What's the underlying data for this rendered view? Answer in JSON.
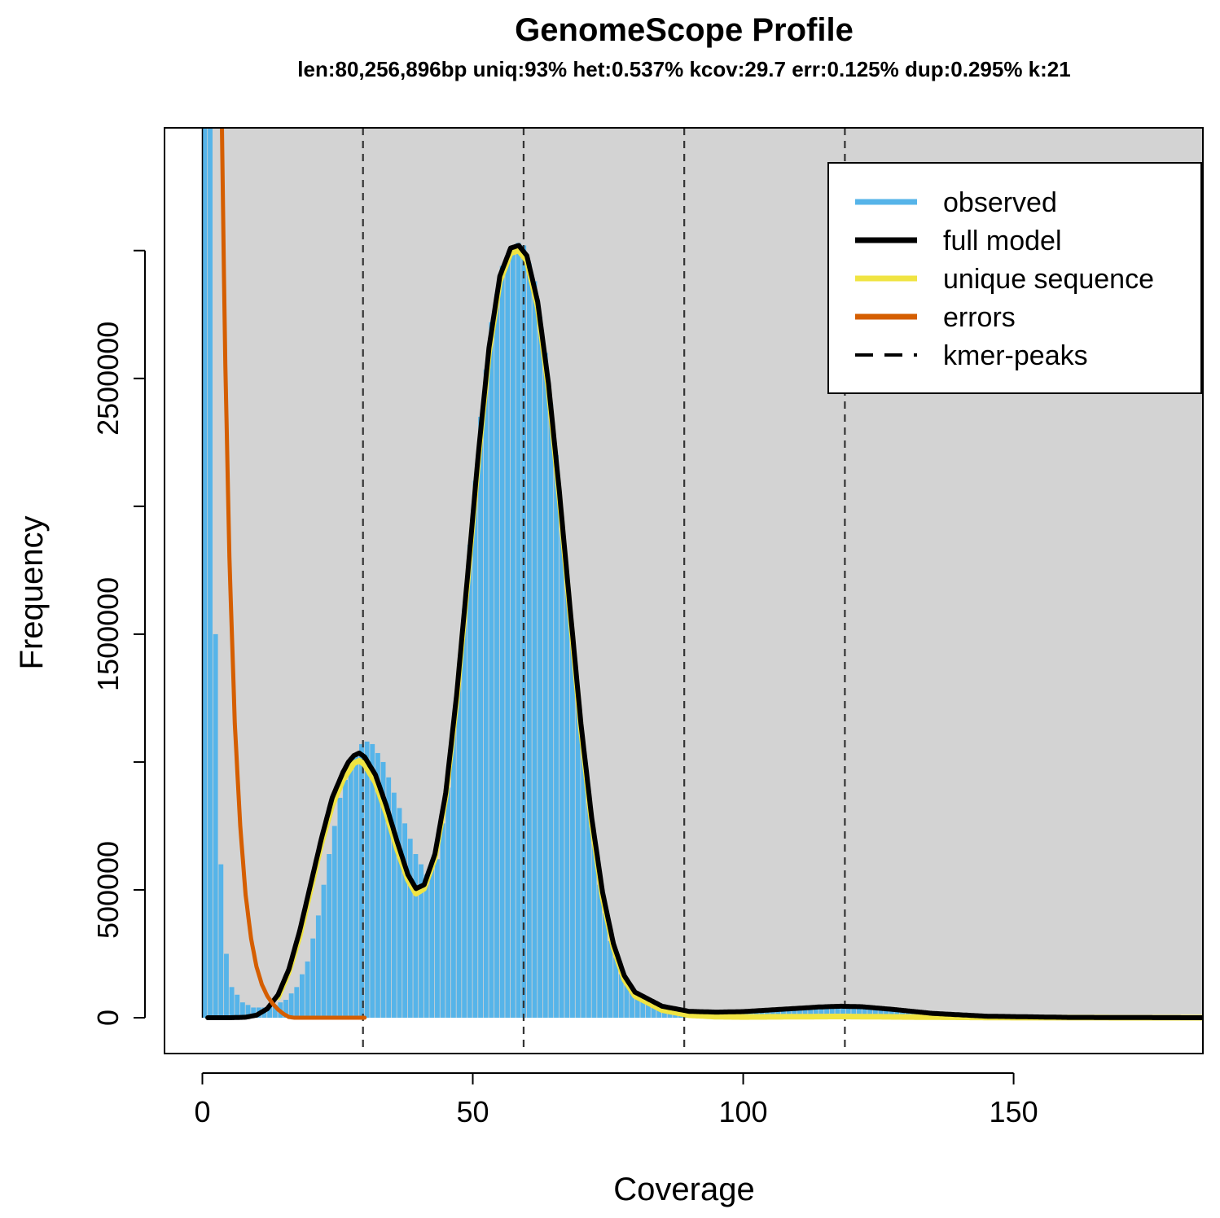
{
  "chart_data": {
    "type": "bar",
    "title": "GenomeScope Profile",
    "subtitle": "len:80,256,896bp uniq:93%  het:0.537% kcov:29.7 err:0.125%  dup:0.295%  k:21",
    "xlabel": "Coverage",
    "ylabel": "Frequency",
    "xlim": [
      -7,
      185
    ],
    "ylim": [
      -140000,
      3480000
    ],
    "x_ticks": [
      0,
      50,
      100,
      150
    ],
    "y_ticks": [
      0,
      500000,
      1500000,
      2500000
    ],
    "y_minor_ticks": [
      1000000,
      2000000,
      3000000
    ],
    "grid": false,
    "background": "#d3d3d3",
    "legend": {
      "placement": "top-right",
      "entries": [
        {
          "label": "observed",
          "color": "#56b4e9",
          "style": "solid"
        },
        {
          "label": "full model",
          "color": "#000000",
          "style": "solid"
        },
        {
          "label": "unique sequence",
          "color": "#f0e442",
          "style": "solid"
        },
        {
          "label": "errors",
          "color": "#d55e00",
          "style": "solid"
        },
        {
          "label": "kmer-peaks",
          "color": "#000000",
          "style": "dashed"
        }
      ]
    },
    "kmer_peaks": [
      29.7,
      59.4,
      89.1,
      118.8
    ],
    "observed_keypoints": [
      [
        1,
        9000000
      ],
      [
        2,
        5000000
      ],
      [
        3,
        1500000
      ],
      [
        4,
        600000
      ],
      [
        5,
        250000
      ],
      [
        6,
        120000
      ],
      [
        8,
        60000
      ],
      [
        10,
        40000
      ],
      [
        12,
        40000
      ],
      [
        14,
        50000
      ],
      [
        16,
        70000
      ],
      [
        18,
        120000
      ],
      [
        20,
        220000
      ],
      [
        22,
        400000
      ],
      [
        24,
        640000
      ],
      [
        26,
        860000
      ],
      [
        28,
        1000000
      ],
      [
        30,
        1070000
      ],
      [
        31,
        1080000
      ],
      [
        32,
        1070000
      ],
      [
        34,
        1000000
      ],
      [
        36,
        880000
      ],
      [
        38,
        760000
      ],
      [
        40,
        640000
      ],
      [
        42,
        560000
      ],
      [
        44,
        620000
      ],
      [
        46,
        900000
      ],
      [
        48,
        1350000
      ],
      [
        50,
        1850000
      ],
      [
        52,
        2350000
      ],
      [
        54,
        2720000
      ],
      [
        56,
        2940000
      ],
      [
        58,
        3020000
      ],
      [
        59,
        3030000
      ],
      [
        60,
        3020000
      ],
      [
        62,
        2880000
      ],
      [
        64,
        2600000
      ],
      [
        66,
        2200000
      ],
      [
        68,
        1720000
      ],
      [
        70,
        1250000
      ],
      [
        72,
        840000
      ],
      [
        74,
        520000
      ],
      [
        76,
        300000
      ],
      [
        78,
        170000
      ],
      [
        80,
        100000
      ],
      [
        84,
        50000
      ],
      [
        90,
        30000
      ],
      [
        100,
        25000
      ],
      [
        110,
        30000
      ],
      [
        118,
        40000
      ],
      [
        125,
        35000
      ],
      [
        135,
        15000
      ],
      [
        150,
        5000
      ],
      [
        185,
        2000
      ]
    ],
    "full_model_keypoints": [
      [
        1,
        0
      ],
      [
        5,
        0
      ],
      [
        8,
        2000
      ],
      [
        10,
        10000
      ],
      [
        12,
        35000
      ],
      [
        14,
        90000
      ],
      [
        16,
        190000
      ],
      [
        18,
        340000
      ],
      [
        20,
        520000
      ],
      [
        22,
        700000
      ],
      [
        24,
        860000
      ],
      [
        26,
        960000
      ],
      [
        27,
        1000000
      ],
      [
        28,
        1025000
      ],
      [
        29,
        1035000
      ],
      [
        30,
        1020000
      ],
      [
        32,
        950000
      ],
      [
        34,
        830000
      ],
      [
        36,
        690000
      ],
      [
        38,
        560000
      ],
      [
        39.5,
        505000
      ],
      [
        41,
        520000
      ],
      [
        43,
        640000
      ],
      [
        45,
        880000
      ],
      [
        47,
        1260000
      ],
      [
        49,
        1720000
      ],
      [
        51,
        2200000
      ],
      [
        53,
        2620000
      ],
      [
        55,
        2900000
      ],
      [
        57,
        3010000
      ],
      [
        58.5,
        3020000
      ],
      [
        60,
        2980000
      ],
      [
        62,
        2800000
      ],
      [
        64,
        2480000
      ],
      [
        66,
        2060000
      ],
      [
        68,
        1600000
      ],
      [
        70,
        1150000
      ],
      [
        72,
        780000
      ],
      [
        74,
        490000
      ],
      [
        76,
        290000
      ],
      [
        78,
        165000
      ],
      [
        80,
        100000
      ],
      [
        85,
        45000
      ],
      [
        90,
        25000
      ],
      [
        95,
        22000
      ],
      [
        100,
        24000
      ],
      [
        108,
        34000
      ],
      [
        114,
        42000
      ],
      [
        118,
        45000
      ],
      [
        122,
        43000
      ],
      [
        128,
        32000
      ],
      [
        135,
        17000
      ],
      [
        145,
        6000
      ],
      [
        160,
        1500
      ],
      [
        185,
        0
      ]
    ],
    "unique_sequence_keypoints": [
      [
        14,
        80000
      ],
      [
        16,
        180000
      ],
      [
        18,
        320000
      ],
      [
        20,
        500000
      ],
      [
        22,
        680000
      ],
      [
        24,
        830000
      ],
      [
        26,
        930000
      ],
      [
        28,
        995000
      ],
      [
        29,
        1005000
      ],
      [
        30,
        990000
      ],
      [
        32,
        920000
      ],
      [
        34,
        800000
      ],
      [
        36,
        660000
      ],
      [
        38,
        540000
      ],
      [
        39.5,
        485000
      ],
      [
        41,
        505000
      ],
      [
        43,
        625000
      ],
      [
        45,
        865000
      ],
      [
        47,
        1240000
      ],
      [
        49,
        1700000
      ],
      [
        51,
        2180000
      ],
      [
        53,
        2600000
      ],
      [
        55,
        2880000
      ],
      [
        57,
        2990000
      ],
      [
        58.5,
        3000000
      ],
      [
        60,
        2960000
      ],
      [
        62,
        2780000
      ],
      [
        64,
        2460000
      ],
      [
        66,
        2040000
      ],
      [
        68,
        1580000
      ],
      [
        70,
        1130000
      ],
      [
        72,
        760000
      ],
      [
        74,
        470000
      ],
      [
        76,
        275000
      ],
      [
        78,
        150000
      ],
      [
        80,
        85000
      ],
      [
        85,
        30000
      ],
      [
        90,
        10000
      ],
      [
        95,
        4000
      ],
      [
        100,
        3000
      ],
      [
        110,
        4000
      ],
      [
        118,
        5000
      ],
      [
        130,
        3000
      ],
      [
        150,
        500
      ],
      [
        185,
        0
      ]
    ],
    "errors_keypoints": [
      [
        3,
        4500000
      ],
      [
        3.6,
        3500000
      ],
      [
        4.2,
        2600000
      ],
      [
        5,
        1800000
      ],
      [
        6,
        1150000
      ],
      [
        7,
        750000
      ],
      [
        8,
        480000
      ],
      [
        9,
        310000
      ],
      [
        10,
        200000
      ],
      [
        11,
        130000
      ],
      [
        12,
        85000
      ],
      [
        13,
        55000
      ],
      [
        14,
        32000
      ],
      [
        15,
        15000
      ],
      [
        16,
        3000
      ],
      [
        17,
        0
      ],
      [
        30,
        0
      ]
    ]
  }
}
